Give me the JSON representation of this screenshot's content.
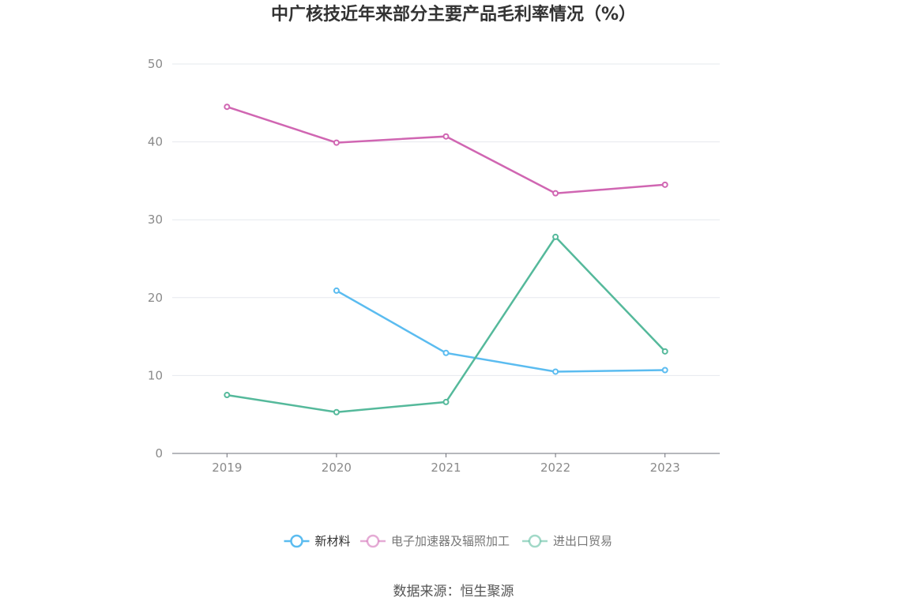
{
  "chart_data": {
    "type": "line",
    "title": "中广核技近年来部分主要产品毛利率情况（%）",
    "x": [
      "2019",
      "2020",
      "2021",
      "2022",
      "2023"
    ],
    "ylim": [
      0,
      50
    ],
    "yticks": [
      "0",
      "10",
      "20",
      "30",
      "40",
      "50"
    ],
    "grid": true,
    "legend_position": "bottom",
    "series": [
      {
        "name": "新材料",
        "color": "#5bbcf0",
        "values": [
          null,
          20.9,
          12.9,
          10.5,
          10.7
        ]
      },
      {
        "name": "电子加速器及辐照加工",
        "color": "#d066b2",
        "values": [
          44.5,
          39.9,
          40.7,
          33.4,
          34.5
        ]
      },
      {
        "name": "进出口贸易",
        "color": "#55b99b",
        "values": [
          7.5,
          5.3,
          6.6,
          27.8,
          13.1
        ]
      }
    ]
  },
  "source": "数据来源：恒生聚源"
}
